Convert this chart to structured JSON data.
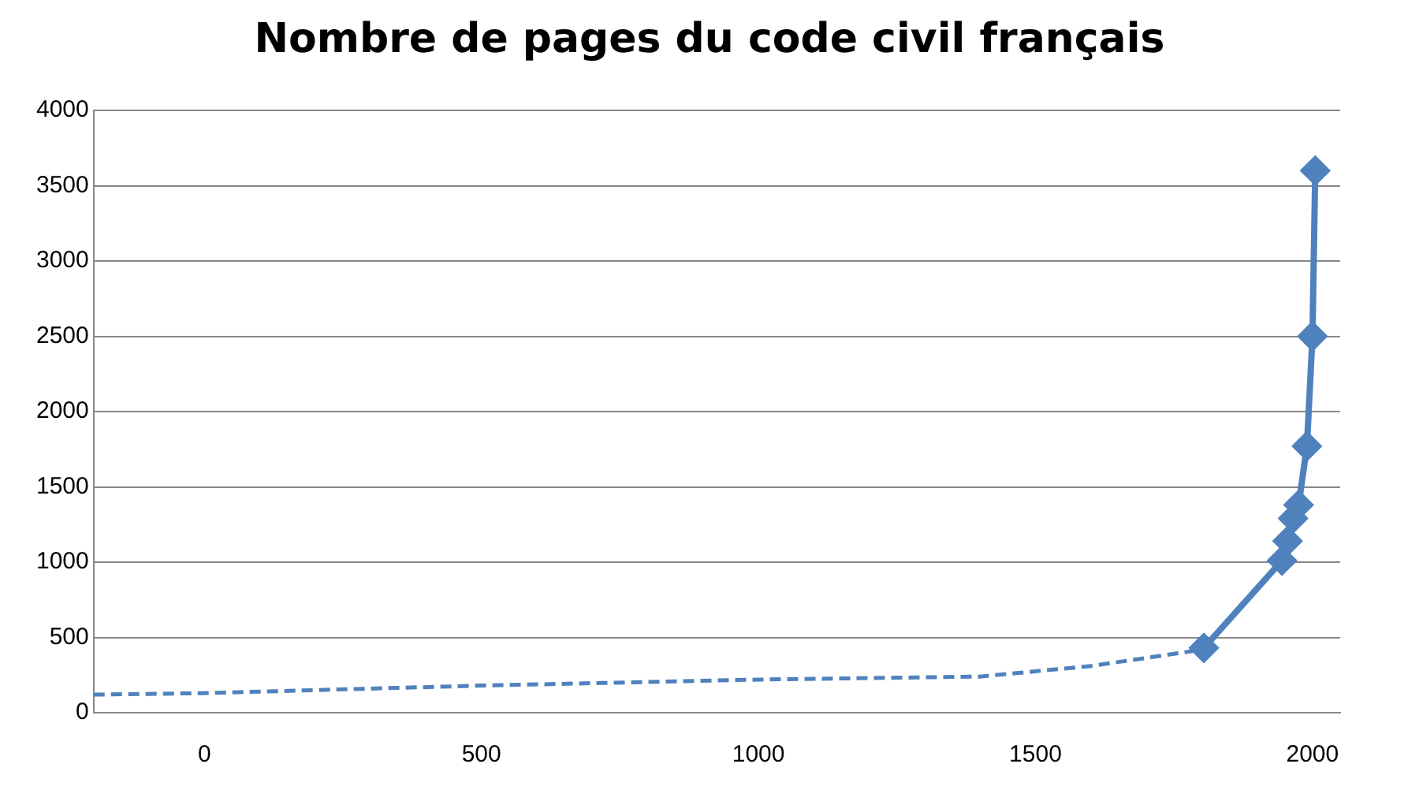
{
  "chart_data": {
    "type": "line",
    "title": "Nombre de pages du code civil français",
    "xlim": [
      -200,
      2050
    ],
    "xticks": [
      0,
      500,
      1000,
      1500,
      2000
    ],
    "ylim": [
      0,
      4000
    ],
    "yticks": [
      0,
      500,
      1000,
      1500,
      2000,
      2500,
      3000,
      3500,
      4000
    ],
    "grid": "y",
    "legend": false,
    "series": [
      {
        "color": "#4f81bd",
        "line_style": "dashed",
        "marker": "none",
        "x": [
          -200,
          0,
          500,
          1000,
          1400,
          1600,
          1804
        ],
        "values": [
          120,
          130,
          180,
          220,
          240,
          310,
          420
        ]
      },
      {
        "color": "#4f81bd",
        "line_style": "solid",
        "marker": "diamond",
        "x": [
          1804,
          1945,
          1955,
          1965,
          1975,
          1990,
          2000,
          2005
        ],
        "values": [
          430,
          1010,
          1140,
          1290,
          1380,
          1770,
          2500,
          3600
        ]
      }
    ]
  }
}
